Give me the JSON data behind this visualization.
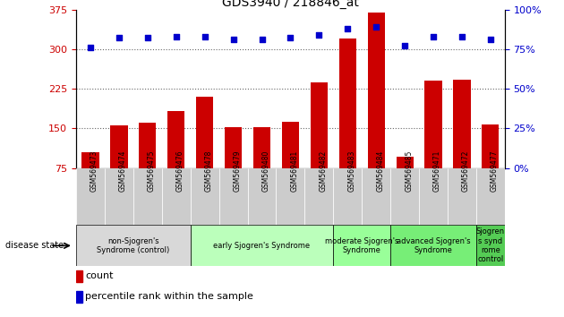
{
  "title": "GDS3940 / 218846_at",
  "samples": [
    "GSM569473",
    "GSM569474",
    "GSM569475",
    "GSM569476",
    "GSM569478",
    "GSM569479",
    "GSM569480",
    "GSM569481",
    "GSM569482",
    "GSM569483",
    "GSM569484",
    "GSM569485",
    "GSM569471",
    "GSM569472",
    "GSM569477"
  ],
  "counts": [
    105,
    155,
    160,
    183,
    210,
    152,
    152,
    163,
    237,
    320,
    370,
    97,
    240,
    242,
    157
  ],
  "percentiles": [
    76,
    82,
    82,
    83,
    83,
    81,
    81,
    82,
    84,
    88,
    89,
    77,
    83,
    83,
    81
  ],
  "bar_color": "#cc0000",
  "dot_color": "#0000cc",
  "ylim_left": [
    75,
    375
  ],
  "ylim_right": [
    0,
    100
  ],
  "yticks_left": [
    75,
    150,
    225,
    300,
    375
  ],
  "yticks_right": [
    0,
    25,
    50,
    75,
    100
  ],
  "groups": [
    {
      "label": "non-Sjogren's\nSyndrome (control)",
      "start": 0,
      "end": 3,
      "color": "#d8d8d8"
    },
    {
      "label": "early Sjogren's Syndrome",
      "start": 4,
      "end": 8,
      "color": "#bbffbb"
    },
    {
      "label": "moderate Sjogren's\nSyndrome",
      "start": 9,
      "end": 10,
      "color": "#99ff99"
    },
    {
      "label": "advanced Sjogren's\nSyndrome",
      "start": 11,
      "end": 13,
      "color": "#77ee77"
    },
    {
      "label": "Sjogren\ns synd\nrome\ncontrol",
      "start": 14,
      "end": 14,
      "color": "#55cc55"
    }
  ],
  "legend_count_label": "count",
  "legend_percentile_label": "percentile rank within the sample",
  "disease_state_label": "disease state",
  "background_color": "#ffffff",
  "sample_box_color": "#cccccc",
  "dotted_line_color": "#666666",
  "right_axis_pct_suffix": true
}
